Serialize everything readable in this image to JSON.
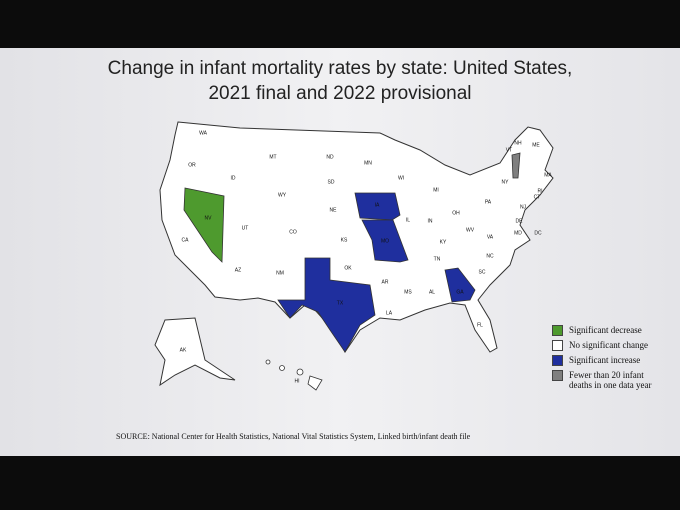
{
  "title": [
    "Change in infant mortality rates by state: United States,",
    "2021 final and 2022 provisional"
  ],
  "legend": [
    {
      "label": "Significant decrease",
      "color": "#4e9a2e"
    },
    {
      "label": "No significant change",
      "color": "#ffffff"
    },
    {
      "label": "Significant increase",
      "color": "#1f2f9e"
    },
    {
      "label": "Fewer than 20 infant deaths in one data year",
      "color": "#7f7f7f"
    }
  ],
  "states": [
    {
      "abbr": "WA",
      "status": "No significant change"
    },
    {
      "abbr": "OR",
      "status": "No significant change"
    },
    {
      "abbr": "CA",
      "status": "No significant change"
    },
    {
      "abbr": "NV",
      "status": "Significant decrease"
    },
    {
      "abbr": "ID",
      "status": "No significant change"
    },
    {
      "abbr": "MT",
      "status": "No significant change"
    },
    {
      "abbr": "WY",
      "status": "No significant change"
    },
    {
      "abbr": "UT",
      "status": "No significant change"
    },
    {
      "abbr": "AZ",
      "status": "No significant change"
    },
    {
      "abbr": "NM",
      "status": "No significant change"
    },
    {
      "abbr": "CO",
      "status": "No significant change"
    },
    {
      "abbr": "ND",
      "status": "No significant change"
    },
    {
      "abbr": "SD",
      "status": "No significant change"
    },
    {
      "abbr": "NE",
      "status": "No significant change"
    },
    {
      "abbr": "KS",
      "status": "No significant change"
    },
    {
      "abbr": "OK",
      "status": "No significant change"
    },
    {
      "abbr": "TX",
      "status": "Significant increase"
    },
    {
      "abbr": "MN",
      "status": "No significant change"
    },
    {
      "abbr": "IA",
      "status": "Significant increase"
    },
    {
      "abbr": "MO",
      "status": "Significant increase"
    },
    {
      "abbr": "AR",
      "status": "No significant change"
    },
    {
      "abbr": "LA",
      "status": "No significant change"
    },
    {
      "abbr": "WI",
      "status": "No significant change"
    },
    {
      "abbr": "IL",
      "status": "No significant change"
    },
    {
      "abbr": "MS",
      "status": "No significant change"
    },
    {
      "abbr": "MI",
      "status": "No significant change"
    },
    {
      "abbr": "IN",
      "status": "No significant change"
    },
    {
      "abbr": "KY",
      "status": "No significant change"
    },
    {
      "abbr": "TN",
      "status": "No significant change"
    },
    {
      "abbr": "AL",
      "status": "No significant change"
    },
    {
      "abbr": "GA",
      "status": "Significant increase"
    },
    {
      "abbr": "FL",
      "status": "No significant change"
    },
    {
      "abbr": "OH",
      "status": "No significant change"
    },
    {
      "abbr": "WV",
      "status": "No significant change"
    },
    {
      "abbr": "VA",
      "status": "No significant change"
    },
    {
      "abbr": "NC",
      "status": "No significant change"
    },
    {
      "abbr": "SC",
      "status": "No significant change"
    },
    {
      "abbr": "PA",
      "status": "No significant change"
    },
    {
      "abbr": "NY",
      "status": "No significant change"
    },
    {
      "abbr": "ME",
      "status": "No significant change"
    },
    {
      "abbr": "NH",
      "status": "No significant change"
    },
    {
      "abbr": "VT",
      "status": "Fewer than 20 infant deaths in one data year"
    },
    {
      "abbr": "MA",
      "status": "No significant change"
    },
    {
      "abbr": "CT",
      "status": "No significant change"
    },
    {
      "abbr": "RI",
      "status": "No significant change"
    },
    {
      "abbr": "NJ",
      "status": "No significant change"
    },
    {
      "abbr": "DE",
      "status": "No significant change"
    },
    {
      "abbr": "MD",
      "status": "No significant change"
    },
    {
      "abbr": "DC",
      "status": "No significant change"
    },
    {
      "abbr": "AK",
      "status": "No significant change"
    },
    {
      "abbr": "HI",
      "status": "No significant change"
    }
  ],
  "source": "SOURCE: National Center for Health Statistics, National Vital Statistics System, Linked birth/infant death file"
}
